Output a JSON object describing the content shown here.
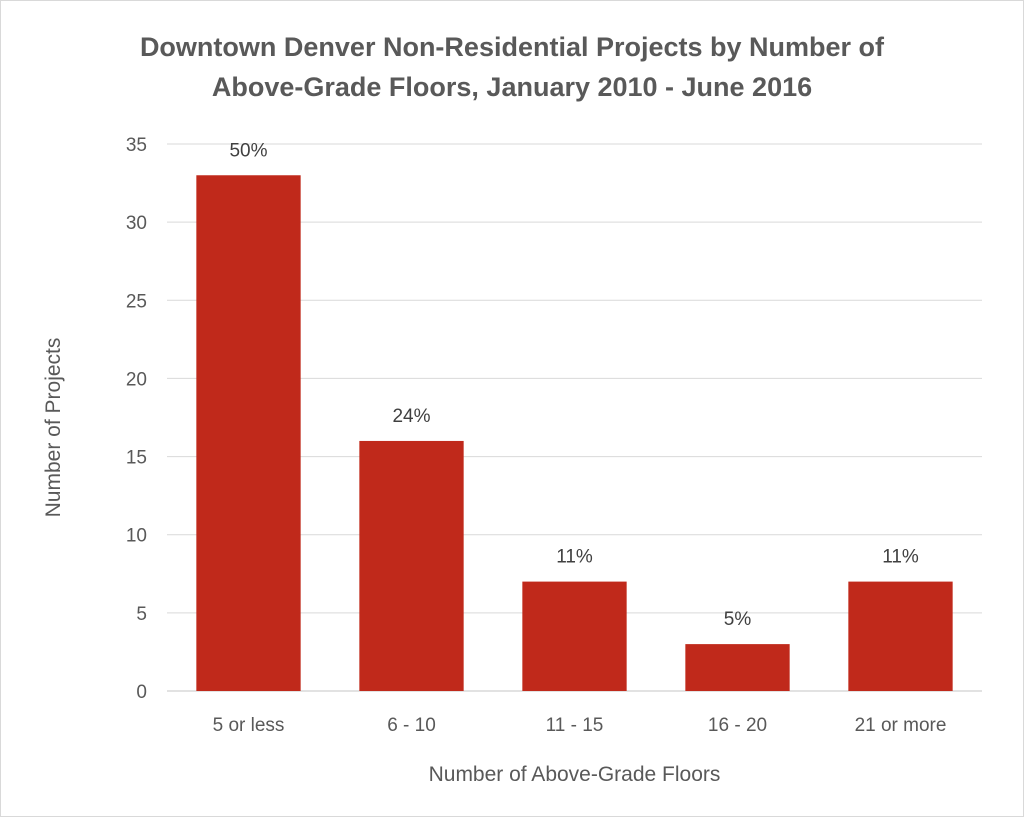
{
  "chart_data": {
    "type": "bar",
    "title_line1": "Downtown Denver Non-Residential Projects by Number of",
    "title_line2": "Above-Grade Floors, January 2010 - June 2016",
    "xlabel": "Number of Above-Grade Floors",
    "ylabel": "Number of Projects",
    "categories": [
      "5 or less",
      "6 - 10",
      "11 - 15",
      "16 - 20",
      "21 or more"
    ],
    "values": [
      33,
      16,
      7,
      3,
      7
    ],
    "data_labels": [
      "50%",
      "24%",
      "11%",
      "5%",
      "11%"
    ],
    "ylim": [
      0,
      35
    ],
    "yticks": [
      0,
      5,
      10,
      15,
      20,
      25,
      30,
      35
    ],
    "grid": true,
    "legend": "none",
    "bar_color": "#c0291b",
    "grid_color": "#d9d9d9"
  }
}
